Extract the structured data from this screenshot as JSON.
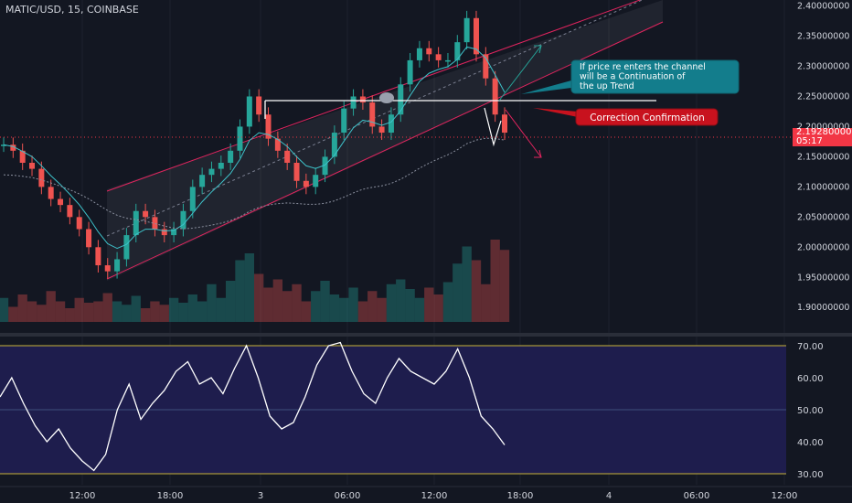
{
  "header": {
    "symbol": "MATIC/USD, 15, COINBASE"
  },
  "price_tag": {
    "price": "2.19280000",
    "countdown": "05:17"
  },
  "colors": {
    "background": "#131722",
    "up_candle": "#26a69a",
    "down_candle": "#ef5350",
    "channel_line": "#e0245e",
    "annotation_teal": "#137d8c",
    "annotation_red": "#c8121e",
    "rsi_fill": "#1e1d4d",
    "rsi_band": "#c8b33b",
    "text": "#d1d4dc"
  },
  "annotations": {
    "continuation": "If price re enters the channel will be a Continuation of the up Trend",
    "correction": "Correction Confirmation"
  },
  "chart_data": [
    {
      "type": "candlestick",
      "ylim": [
        1.87,
        2.41
      ],
      "y_ticks": [
        "2.40000000",
        "2.35000000",
        "2.30000000",
        "2.25000000",
        "2.20000000",
        "2.15000000",
        "2.10000000",
        "2.05000000",
        "2.00000000",
        "1.95000000",
        "1.90000000"
      ],
      "x_ticks": [
        "12:00",
        "18:00",
        "3",
        "06:00",
        "12:00",
        "18:00",
        "4",
        "06:00",
        "12:00"
      ],
      "price_series": [
        2.17,
        2.16,
        2.14,
        2.13,
        2.1,
        2.08,
        2.07,
        2.05,
        2.03,
        2.0,
        1.97,
        1.96,
        1.98,
        2.02,
        2.06,
        2.05,
        2.03,
        2.02,
        2.03,
        2.06,
        2.1,
        2.12,
        2.13,
        2.14,
        2.16,
        2.2,
        2.25,
        2.22,
        2.18,
        2.16,
        2.14,
        2.11,
        2.1,
        2.12,
        2.15,
        2.19,
        2.23,
        2.25,
        2.24,
        2.2,
        2.19,
        2.22,
        2.27,
        2.31,
        2.33,
        2.32,
        2.31,
        2.31,
        2.34,
        2.38,
        2.32,
        2.28,
        2.22,
        2.19
      ],
      "volume": [
        0.35,
        0.22,
        0.4,
        0.3,
        0.25,
        0.45,
        0.3,
        0.2,
        0.35,
        0.28,
        0.3,
        0.42,
        0.3,
        0.25,
        0.38,
        0.2,
        0.3,
        0.25,
        0.35,
        0.28,
        0.4,
        0.3,
        0.55,
        0.35,
        0.6,
        0.9,
        1.0,
        0.7,
        0.5,
        0.62,
        0.45,
        0.55,
        0.3,
        0.45,
        0.6,
        0.4,
        0.35,
        0.5,
        0.3,
        0.45,
        0.35,
        0.55,
        0.62,
        0.48,
        0.35,
        0.5,
        0.4,
        0.58,
        0.85,
        1.1,
        0.9,
        0.55,
        1.2,
        1.05
      ],
      "annotation_box": {
        "text": "If price re enters the channel will be a Continuation of the up Trend"
      },
      "annotation_label": {
        "text": "Correction Confirmation"
      }
    },
    {
      "type": "line",
      "ylim": [
        28,
        73
      ],
      "y_ticks": [
        "70.00",
        "60.00",
        "50.00",
        "40.00",
        "30.00"
      ],
      "bands": [
        70,
        50,
        30
      ],
      "values": [
        54,
        60,
        52,
        45,
        40,
        44,
        38,
        34,
        31,
        36,
        50,
        58,
        47,
        52,
        56,
        62,
        65,
        58,
        60,
        55,
        63,
        70,
        60,
        48,
        44,
        46,
        54,
        64,
        70,
        71,
        62,
        55,
        52,
        60,
        66,
        62,
        60,
        58,
        62,
        69,
        60,
        48,
        44,
        39
      ]
    }
  ]
}
